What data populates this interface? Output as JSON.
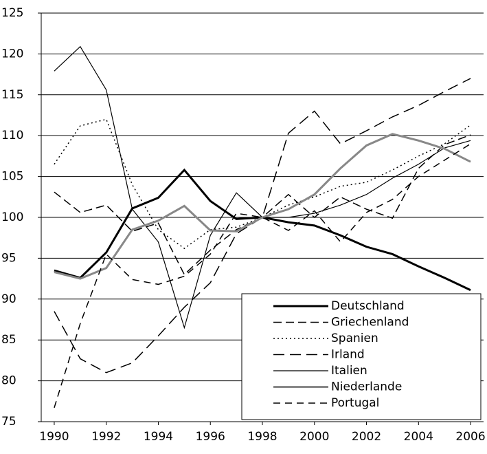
{
  "chart_data": {
    "type": "line",
    "x": [
      1990,
      1991,
      1992,
      1993,
      1994,
      1995,
      1996,
      1997,
      1998,
      1999,
      2000,
      2001,
      2002,
      2003,
      2004,
      2005,
      2006
    ],
    "xlim": [
      1989.5,
      2006.5
    ],
    "xticks": [
      1990,
      1992,
      1994,
      1996,
      1998,
      2000,
      2002,
      2004,
      2006
    ],
    "ylim": [
      75,
      125
    ],
    "yticks": [
      75,
      80,
      85,
      90,
      95,
      100,
      105,
      110,
      115,
      120,
      125
    ],
    "grid": true,
    "legend": "bottom-right",
    "series": [
      {
        "name": "Deutschland",
        "color": "#000000",
        "width": 3,
        "dash": "none",
        "values": [
          93.5,
          92.6,
          95.7,
          101.1,
          102.4,
          105.8,
          102.0,
          99.8,
          100,
          99.4,
          99.0,
          97.8,
          96.4,
          95.5,
          94.0,
          92.6,
          91.1
        ]
      },
      {
        "name": "Griechenland",
        "color": "#000000",
        "width": 1.5,
        "dash": "12,6",
        "values": [
          103.1,
          100.6,
          101.5,
          98.3,
          99.3,
          93.0,
          96.0,
          98.5,
          100,
          102.8,
          100.0,
          102.5,
          101.0,
          99.9,
          106.0,
          108.9,
          110.1
        ]
      },
      {
        "name": "Spanien",
        "color": "#000000",
        "width": 1.5,
        "dash": "2,4",
        "values": [
          106.5,
          111.2,
          112.0,
          104.0,
          98.5,
          96.2,
          98.5,
          98.8,
          100,
          101.5,
          102.5,
          103.8,
          104.3,
          105.8,
          107.5,
          109.0,
          111.3
        ]
      },
      {
        "name": "Irland",
        "color": "#000000",
        "width": 1.5,
        "dash": "16,8",
        "values": [
          88.5,
          82.7,
          81.0,
          82.2,
          85.5,
          89.0,
          92.0,
          98.0,
          100,
          110.3,
          113.0,
          109.0,
          110.6,
          112.3,
          113.7,
          115.4,
          117.0
        ]
      },
      {
        "name": "Italien",
        "color": "#000000",
        "width": 1.2,
        "dash": "none",
        "values": [
          117.9,
          120.9,
          115.6,
          101.0,
          97.0,
          86.5,
          97.8,
          103.0,
          100,
          100.0,
          100.5,
          101.5,
          102.8,
          104.8,
          106.5,
          108.5,
          109.4
        ]
      },
      {
        "name": "Niederlande",
        "color": "#888888",
        "width": 3,
        "dash": "none",
        "values": [
          93.3,
          92.5,
          93.8,
          98.5,
          99.6,
          101.4,
          98.4,
          98.3,
          100,
          101.0,
          102.8,
          106.0,
          108.8,
          110.2,
          109.4,
          108.4,
          106.8
        ]
      },
      {
        "name": "Portugal",
        "color": "#000000",
        "width": 1.5,
        "dash": "10,7",
        "values": [
          76.7,
          87.0,
          95.5,
          92.4,
          91.8,
          92.8,
          95.5,
          100.5,
          100,
          98.4,
          100.8,
          97.0,
          100.6,
          102.2,
          105.0,
          107.0,
          109.0
        ]
      }
    ]
  }
}
